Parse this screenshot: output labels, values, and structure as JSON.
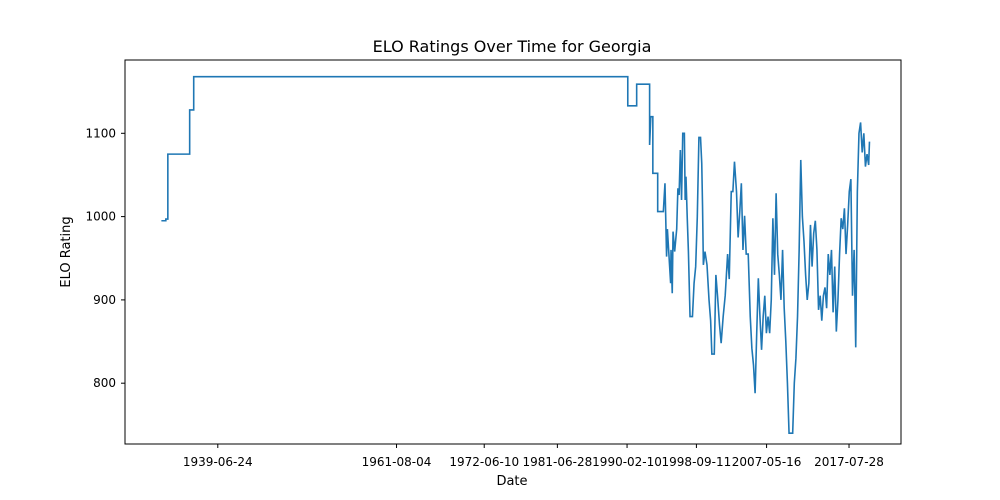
{
  "chart_data": {
    "type": "line",
    "title": "ELO Ratings Over Time for Georgia",
    "xlabel": "Date",
    "ylabel": "ELO Rating",
    "x_tick_labels": [
      "1939-06-24",
      "1961-08-04",
      "1972-06-10",
      "1981-06-28",
      "1990-02-10",
      "1998-09-11",
      "2007-05-16",
      "2017-07-28"
    ],
    "y_tick_labels": [
      "800",
      "900",
      "1000",
      "1100"
    ],
    "x_ticks": [
      1939.48,
      1961.59,
      1972.44,
      1981.49,
      1990.11,
      1998.69,
      2007.37,
      2017.57
    ],
    "y_ticks": [
      800,
      900,
      1000,
      1100
    ],
    "xlim": [
      1928.0,
      2024.0
    ],
    "ylim": [
      727,
      1188
    ],
    "grid": false,
    "colors": {
      "line": "#1f77b4"
    },
    "series": [
      {
        "points": [
          [
            1932.5,
            995
          ],
          [
            1933.05,
            995
          ],
          [
            1933.05,
            997
          ],
          [
            1933.3,
            997
          ],
          [
            1933.3,
            1075
          ],
          [
            1935.6,
            1075
          ],
          [
            1936.0,
            1075
          ],
          [
            1936.0,
            1128
          ],
          [
            1936.5,
            1128
          ],
          [
            1936.5,
            1168
          ],
          [
            1990.2,
            1168
          ],
          [
            1990.2,
            1133
          ],
          [
            1991.3,
            1133
          ],
          [
            1991.3,
            1159
          ],
          [
            1992.9,
            1159
          ],
          [
            1992.9,
            1086
          ],
          [
            1993.05,
            1120
          ],
          [
            1993.3,
            1120
          ],
          [
            1993.3,
            1052
          ],
          [
            1993.9,
            1052
          ],
          [
            1993.9,
            1006
          ],
          [
            1994.6,
            1006
          ],
          [
            1994.8,
            1040
          ],
          [
            1995.0,
            952
          ],
          [
            1995.1,
            985
          ],
          [
            1995.5,
            920
          ],
          [
            1995.55,
            960
          ],
          [
            1995.7,
            908
          ],
          [
            1995.8,
            982
          ],
          [
            1996.0,
            958
          ],
          [
            1996.25,
            985
          ],
          [
            1996.4,
            1034
          ],
          [
            1996.55,
            1026
          ],
          [
            1996.7,
            1080
          ],
          [
            1996.85,
            1020
          ],
          [
            1997.0,
            1100
          ],
          [
            1997.2,
            1100
          ],
          [
            1997.3,
            1020
          ],
          [
            1997.4,
            1048
          ],
          [
            1997.55,
            1000
          ],
          [
            1997.7,
            958
          ],
          [
            1997.9,
            880
          ],
          [
            1998.2,
            880
          ],
          [
            1998.4,
            920
          ],
          [
            1998.6,
            940
          ],
          [
            1998.8,
            1000
          ],
          [
            1999.0,
            1095
          ],
          [
            1999.2,
            1095
          ],
          [
            1999.35,
            1064
          ],
          [
            1999.45,
            1012
          ],
          [
            1999.55,
            942
          ],
          [
            1999.75,
            958
          ],
          [
            2000.0,
            942
          ],
          [
            2000.25,
            900
          ],
          [
            2000.45,
            875
          ],
          [
            2000.6,
            835
          ],
          [
            2000.9,
            835
          ],
          [
            2001.1,
            930
          ],
          [
            2001.3,
            905
          ],
          [
            2001.55,
            870
          ],
          [
            2001.75,
            848
          ],
          [
            2002.0,
            880
          ],
          [
            2002.25,
            905
          ],
          [
            2002.55,
            955
          ],
          [
            2002.75,
            925
          ],
          [
            2003.0,
            1030
          ],
          [
            2003.2,
            1030
          ],
          [
            2003.4,
            1066
          ],
          [
            2003.65,
            1030
          ],
          [
            2003.85,
            975
          ],
          [
            2004.05,
            1005
          ],
          [
            2004.25,
            1040
          ],
          [
            2004.45,
            960
          ],
          [
            2004.65,
            1001
          ],
          [
            2004.85,
            955
          ],
          [
            2005.1,
            955
          ],
          [
            2005.35,
            880
          ],
          [
            2005.55,
            842
          ],
          [
            2005.75,
            822
          ],
          [
            2005.95,
            788
          ],
          [
            2006.15,
            860
          ],
          [
            2006.35,
            926
          ],
          [
            2006.55,
            880
          ],
          [
            2006.75,
            840
          ],
          [
            2006.95,
            880
          ],
          [
            2007.15,
            905
          ],
          [
            2007.35,
            860
          ],
          [
            2007.55,
            880
          ],
          [
            2007.75,
            860
          ],
          [
            2007.95,
            900
          ],
          [
            2008.15,
            998
          ],
          [
            2008.35,
            930
          ],
          [
            2008.55,
            1028
          ],
          [
            2008.75,
            955
          ],
          [
            2008.95,
            930
          ],
          [
            2009.15,
            900
          ],
          [
            2009.35,
            960
          ],
          [
            2009.55,
            890
          ],
          [
            2009.75,
            850
          ],
          [
            2009.95,
            800
          ],
          [
            2010.15,
            740
          ],
          [
            2010.6,
            740
          ],
          [
            2010.8,
            800
          ],
          [
            2011.0,
            830
          ],
          [
            2011.2,
            880
          ],
          [
            2011.4,
            960
          ],
          [
            2011.6,
            1068
          ],
          [
            2011.8,
            1000
          ],
          [
            2012.0,
            970
          ],
          [
            2012.2,
            930
          ],
          [
            2012.4,
            900
          ],
          [
            2012.6,
            920
          ],
          [
            2012.8,
            990
          ],
          [
            2013.0,
            940
          ],
          [
            2013.2,
            980
          ],
          [
            2013.4,
            995
          ],
          [
            2013.6,
            960
          ],
          [
            2013.8,
            888
          ],
          [
            2014.0,
            905
          ],
          [
            2014.2,
            875
          ],
          [
            2014.4,
            905
          ],
          [
            2014.6,
            915
          ],
          [
            2014.8,
            890
          ],
          [
            2015.0,
            955
          ],
          [
            2015.2,
            930
          ],
          [
            2015.4,
            960
          ],
          [
            2015.6,
            885
          ],
          [
            2015.8,
            940
          ],
          [
            2016.0,
            862
          ],
          [
            2016.2,
            900
          ],
          [
            2016.4,
            955
          ],
          [
            2016.6,
            998
          ],
          [
            2016.8,
            985
          ],
          [
            2017.0,
            1010
          ],
          [
            2017.2,
            955
          ],
          [
            2017.4,
            990
          ],
          [
            2017.6,
            1030
          ],
          [
            2017.8,
            1045
          ],
          [
            2018.0,
            905
          ],
          [
            2018.2,
            960
          ],
          [
            2018.4,
            843
          ],
          [
            2018.6,
            1030
          ],
          [
            2018.8,
            1100
          ],
          [
            2019.0,
            1113
          ],
          [
            2019.2,
            1077
          ],
          [
            2019.4,
            1100
          ],
          [
            2019.6,
            1060
          ],
          [
            2019.8,
            1075
          ],
          [
            2020.0,
            1062
          ],
          [
            2020.1,
            1090
          ]
        ]
      }
    ]
  }
}
